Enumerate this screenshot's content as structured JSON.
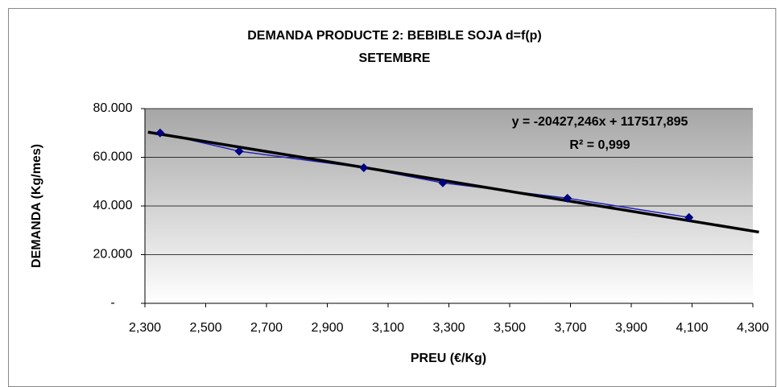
{
  "chart_data": {
    "type": "scatter",
    "title": "DEMANDA PRODUCTE 2: BEBIBLE SOJA d=f(p)",
    "subtitle": "SETEMBRE",
    "x_label": "PREU (€/Kg)",
    "y_label": "DEMANDA (Kg/mes)",
    "series": [
      {
        "color": "#000080",
        "x": [
          2.35,
          2.61,
          3.02,
          3.28,
          3.69,
          4.09
        ],
        "values": [
          70000,
          62500,
          55700,
          49500,
          43200,
          35300
        ]
      }
    ],
    "trendline": {
      "color": "#000000",
      "x": [
        2.31,
        4.32
      ],
      "values": [
        70331,
        29272
      ]
    },
    "annotations": [
      "y = -20427,246x + 117517,895",
      "R² = 0,999"
    ],
    "xlim": [
      2.3,
      4.3
    ],
    "xticks": [
      {
        "value": 2.3,
        "label": "2,300"
      },
      {
        "value": 2.5,
        "label": "2,500"
      },
      {
        "value": 2.7,
        "label": "2,700"
      },
      {
        "value": 2.9,
        "label": "2,900"
      },
      {
        "value": 3.1,
        "label": "3,100"
      },
      {
        "value": 3.3,
        "label": "3,300"
      },
      {
        "value": 3.5,
        "label": "3,500"
      },
      {
        "value": 3.7,
        "label": "3,700"
      },
      {
        "value": 3.9,
        "label": "3,900"
      },
      {
        "value": 4.1,
        "label": "4,100"
      },
      {
        "value": 4.3,
        "label": "4,300"
      }
    ],
    "ylim": [
      0,
      80000
    ],
    "yticks": [
      {
        "value": 0,
        "label": "-"
      },
      {
        "value": 20000,
        "label": "20.000"
      },
      {
        "value": 40000,
        "label": "40.000"
      },
      {
        "value": 60000,
        "label": "60.000"
      },
      {
        "value": 80000,
        "label": "80.000"
      }
    ],
    "grid": true
  }
}
